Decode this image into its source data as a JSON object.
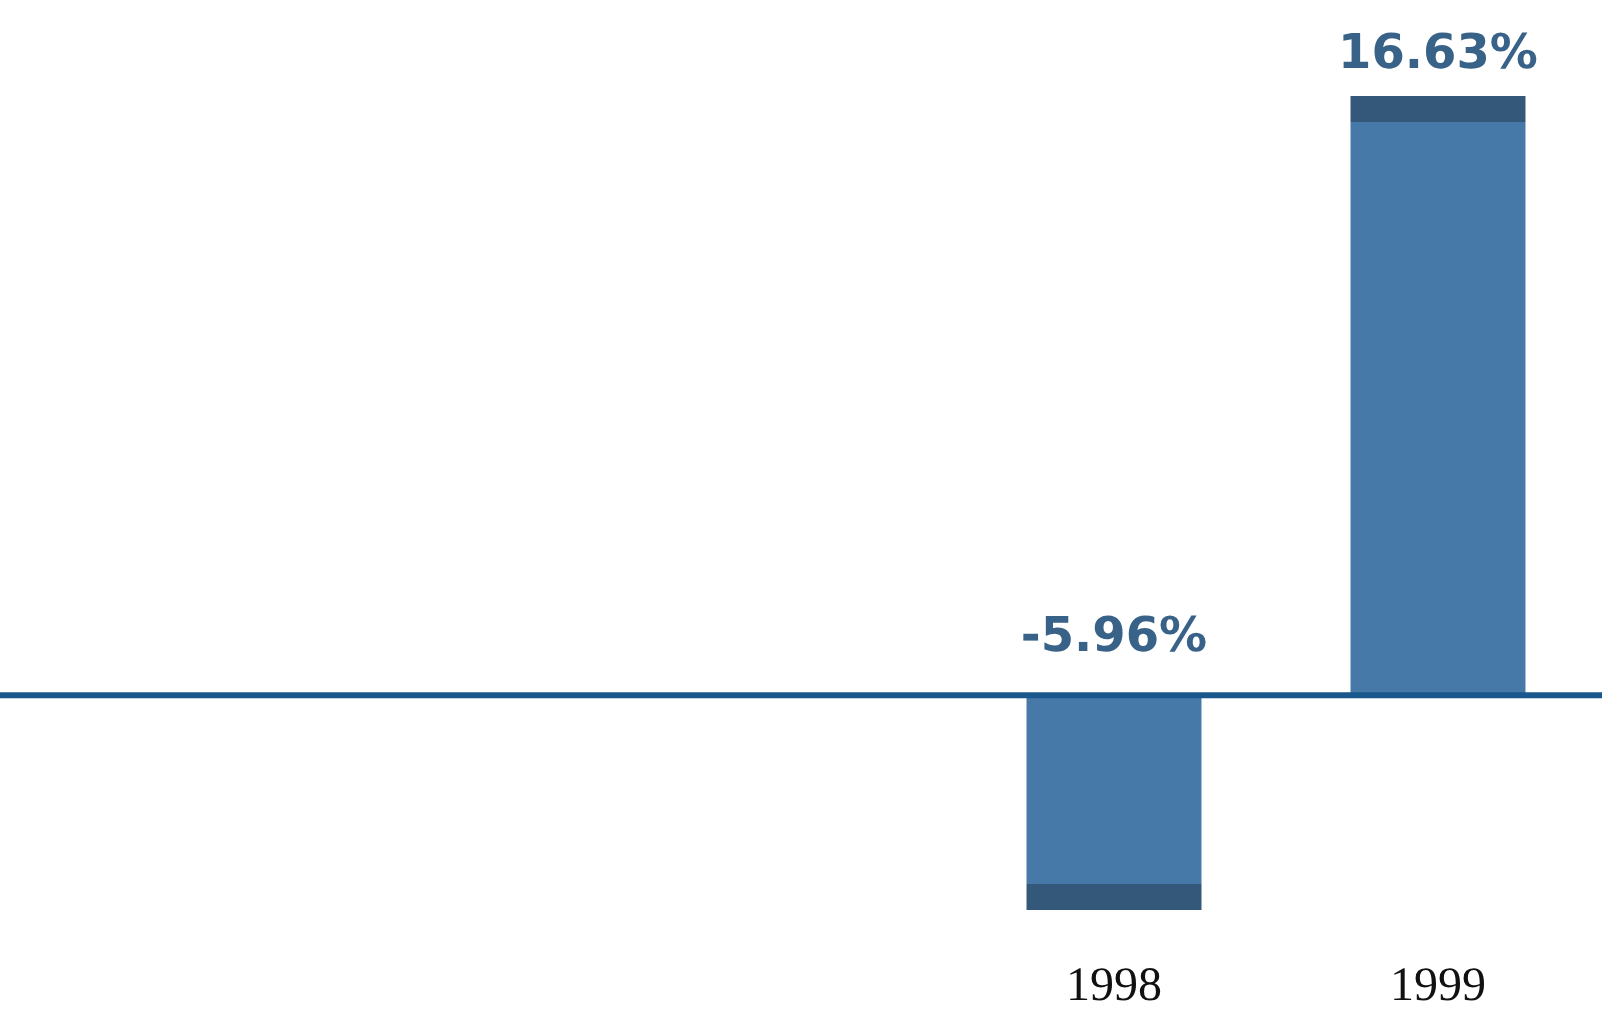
{
  "chart_data": {
    "type": "bar",
    "categories": [
      null,
      null,
      null,
      "1998",
      "1999"
    ],
    "values": [
      null,
      null,
      null,
      -5.96,
      16.63
    ],
    "color": "#4679a8",
    "value_labels": [
      null,
      null,
      null,
      "-5.96%",
      "16.63%"
    ],
    "ref_lines": [
      {
        "axis": "y",
        "value": 0,
        "color": "#1a578c"
      }
    ]
  }
}
